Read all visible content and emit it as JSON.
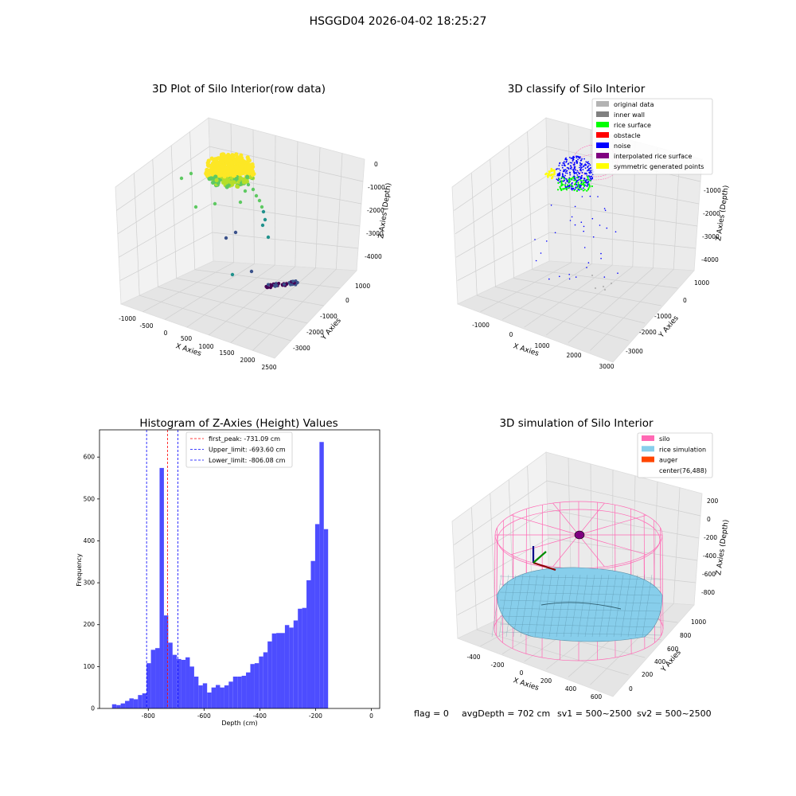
{
  "suptitle": "HSGGD04 2026-04-02 18:25:27",
  "footer": {
    "flag": "flag = 0",
    "avg_depth": "avgDepth = 702 cm",
    "sv1": "sv1 = 500~2500",
    "sv2": "sv2 = 500~2500"
  },
  "chart_data": [
    {
      "type": "scatter",
      "id": "raw-3d",
      "title": "3D Plot of Silo Interior(row data)",
      "xlabel": "X Axies",
      "ylabel": "Y Axies",
      "zlabel": "Z Axies (Depth)",
      "x_ticks": [
        "-1000",
        "-500",
        "0",
        "500",
        "1000",
        "1500",
        "2000",
        "2500"
      ],
      "y_ticks": [
        "1000",
        "0",
        "-1000",
        "-2000",
        "-3000"
      ],
      "z_ticks": [
        "0",
        "-1000",
        "-2000",
        "-3000",
        "-4000"
      ],
      "colormap": [
        "#440154",
        "#3b528b",
        "#21918c",
        "#5ec962",
        "#fde725"
      ],
      "note": "dense cluster of points near depth 0 colored yellow-green, sparse points descending to depth -4000 colored teal to purple"
    },
    {
      "type": "scatter",
      "id": "classify-3d",
      "title": "3D classify of Silo Interior",
      "xlabel": "X Axies",
      "ylabel": "Y Axies",
      "zlabel": "Z Axies (Depth)",
      "x_ticks": [
        "-1000",
        "0",
        "1000",
        "2000",
        "3000"
      ],
      "y_ticks": [
        "1000",
        "0",
        "-1000",
        "-2000",
        "-3000"
      ],
      "z_ticks": [
        "-1000",
        "-2000",
        "-3000",
        "-4000"
      ],
      "legend": [
        {
          "label": "original data",
          "color": "#b3b3b3"
        },
        {
          "label": "inner wall",
          "color": "#808080"
        },
        {
          "label": "rice surface",
          "color": "#00ff00"
        },
        {
          "label": "obstacle",
          "color": "#ff0000"
        },
        {
          "label": "noise",
          "color": "#0000ff"
        },
        {
          "label": "interpolated rice surface",
          "color": "#800080"
        },
        {
          "label": "symmetric generated points",
          "color": "#ffff00"
        }
      ],
      "legend_placement": "top-right"
    },
    {
      "type": "bar",
      "id": "histogram",
      "title": "Histogram of Z-Axies (Height) Values",
      "xlabel": "Depth (cm)",
      "ylabel": "Frequency",
      "bin_width": 15.5,
      "bin_start": -930,
      "values": [
        10,
        8,
        12,
        18,
        24,
        22,
        32,
        36,
        108,
        140,
        144,
        574,
        222,
        157,
        128,
        118,
        116,
        122,
        100,
        76,
        55,
        60,
        38,
        50,
        56,
        50,
        55,
        64,
        76,
        76,
        78,
        86,
        106,
        108,
        124,
        134,
        160,
        179,
        180,
        180,
        199,
        193,
        210,
        238,
        240,
        306,
        352,
        440,
        636,
        428
      ],
      "x_ticks": [
        -800,
        -600,
        -400,
        -200,
        0
      ],
      "y_ticks": [
        0,
        100,
        200,
        300,
        400,
        500,
        600
      ],
      "xlim": [
        -975,
        30
      ],
      "ylim": [
        0,
        665
      ],
      "bar_color": "#4d4dff",
      "vlines": [
        {
          "label": "first_peak: -731.09 cm",
          "x": -731.09,
          "color": "#ff0000"
        },
        {
          "label": "Upper_limit: -693.60 cm",
          "x": -693.6,
          "color": "#0000ff"
        },
        {
          "label": "Lower_limit: -806.08 cm",
          "x": -806.08,
          "color": "#0000ff"
        }
      ],
      "legend_placement": "upper-center"
    },
    {
      "type": "surface",
      "id": "simulation-3d",
      "title": "3D simulation of Silo Interior",
      "xlabel": "X Axies",
      "ylabel": "Y Axies",
      "zlabel": "Z Axies (Depth)",
      "x_ticks": [
        "-400",
        "-200",
        "0",
        "200",
        "400",
        "600"
      ],
      "y_ticks": [
        "1000",
        "800",
        "600",
        "400",
        "200",
        "0"
      ],
      "z_ticks": [
        "200",
        "0",
        "-200",
        "-400",
        "-600",
        "-800"
      ],
      "legend": [
        {
          "label": "silo",
          "color": "#ff69b4"
        },
        {
          "label": "rice simulation",
          "color": "#87ceeb"
        },
        {
          "label": "auger",
          "color": "#ff4500"
        },
        {
          "label": "center(76,488)",
          "color": ""
        }
      ],
      "legend_placement": "top-right"
    }
  ]
}
